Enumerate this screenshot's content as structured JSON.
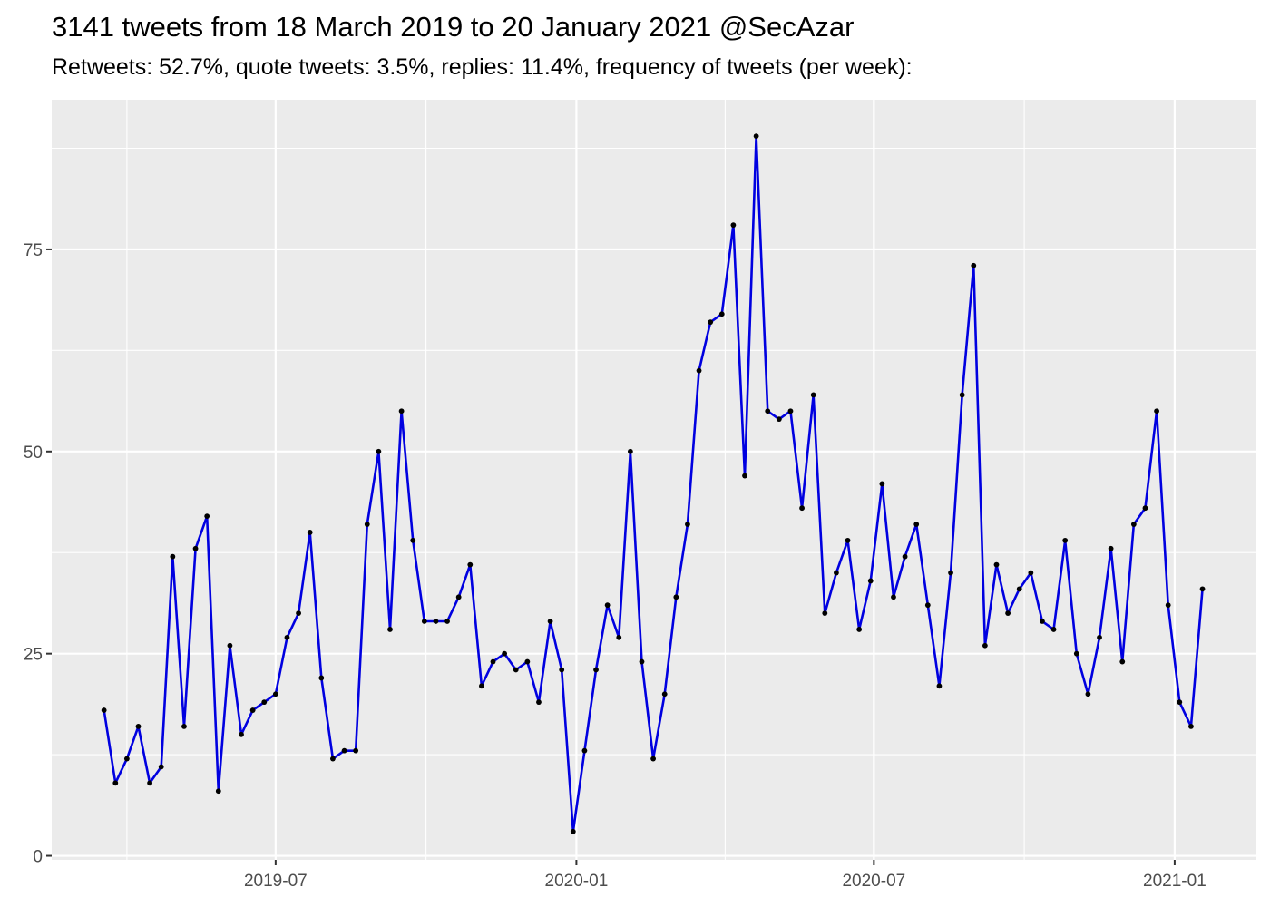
{
  "title": "3141 tweets from 18 March 2019 to 20 January 2021 @SecAzar",
  "subtitle": "Retweets: 52.7%, quote tweets: 3.5%, replies: 11.4%, frequency of tweets (per week):",
  "colors": {
    "line": "#0000e0",
    "point": "#000000",
    "panel": "#ebebeb",
    "grid": "#ffffff"
  },
  "chart_data": {
    "type": "line",
    "title": "3141 tweets from 18 March 2019 to 20 January 2021 @SecAzar",
    "subtitle": "Retweets: 52.7%, quote tweets: 3.5%, replies: 11.4%, frequency of tweets (per week):",
    "xlabel": "",
    "ylabel": "",
    "x_start": "2019-03-18",
    "x_step_days": 7,
    "xlim": [
      "2019-02-14",
      "2021-02-20"
    ],
    "ylim": [
      -0.5,
      93.5
    ],
    "y_ticks": [
      0,
      25,
      50,
      75
    ],
    "x_ticks": [
      {
        "date": "2019-07-01",
        "label": "2019-07"
      },
      {
        "date": "2020-01-01",
        "label": "2020-01"
      },
      {
        "date": "2020-07-01",
        "label": "2020-07"
      },
      {
        "date": "2021-01-01",
        "label": "2021-01"
      }
    ],
    "x_minor_ticks": [
      "2019-04-01",
      "2019-10-01",
      "2020-04-01",
      "2020-10-01"
    ],
    "grid": true,
    "values": [
      18,
      9,
      12,
      16,
      9,
      11,
      37,
      16,
      38,
      42,
      8,
      26,
      15,
      18,
      19,
      20,
      27,
      30,
      40,
      22,
      12,
      13,
      13,
      41,
      50,
      28,
      55,
      39,
      29,
      29,
      29,
      32,
      36,
      21,
      24,
      25,
      23,
      24,
      19,
      29,
      23,
      3,
      13,
      23,
      31,
      27,
      50,
      24,
      12,
      20,
      32,
      41,
      60,
      66,
      67,
      78,
      47,
      89,
      55,
      54,
      55,
      43,
      57,
      30,
      35,
      39,
      28,
      34,
      46,
      32,
      37,
      41,
      31,
      21,
      35,
      57,
      73,
      26,
      36,
      30,
      33,
      35,
      29,
      28,
      39,
      25,
      20,
      27,
      38,
      24,
      41,
      43,
      55,
      31,
      19,
      16,
      33
    ]
  }
}
